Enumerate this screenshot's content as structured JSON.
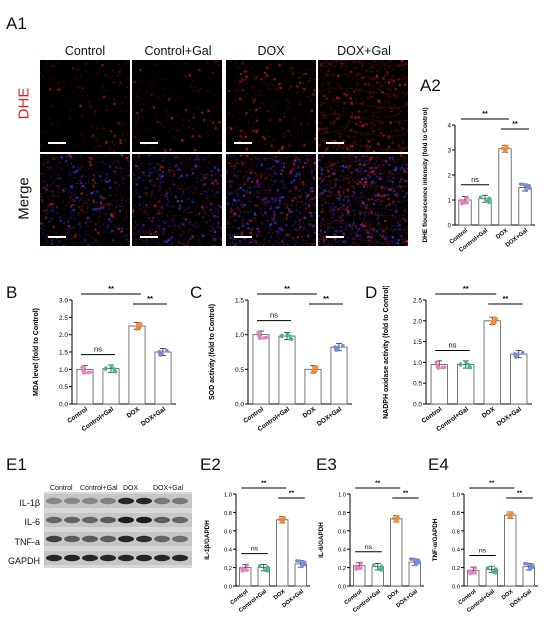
{
  "panel_labels": {
    "a1": "A1",
    "a2": "A2",
    "b": "B",
    "c": "C",
    "d": "D",
    "e1": "E1",
    "e2": "E2",
    "e3": "E3",
    "e4": "E4"
  },
  "micrograph": {
    "columns": [
      "Control",
      "Control+Gal",
      "DOX",
      "DOX+Gal"
    ],
    "rows": [
      "DHE",
      "Merge"
    ],
    "dhe_color": "#e02020"
  },
  "western": {
    "lanes": [
      "Control",
      "Control+Gal",
      "DOX",
      "DOX+Gal"
    ],
    "proteins": [
      "IL-1β",
      "IL-6",
      "TNF-a",
      "GAPDH"
    ]
  },
  "chart_data": [
    {
      "id": "A2",
      "type": "bar",
      "categories": [
        "Control",
        "Control+Gal",
        "DOX",
        "DOX+Gal"
      ],
      "values": [
        1.0,
        1.05,
        3.05,
        1.5
      ],
      "ylabel": "DHE flourescence intensity (fold to Control)",
      "ylim": [
        0,
        4
      ],
      "yticks": [
        0,
        1,
        2,
        3,
        4
      ],
      "colors": [
        "#e87fc2",
        "#3fbf7f",
        "#f08a3c",
        "#7a8ad6"
      ],
      "significance": [
        {
          "from": 0,
          "to": 1,
          "label": "ns"
        },
        {
          "from": 0,
          "to": 2,
          "label": "**"
        },
        {
          "from": 2,
          "to": 3,
          "label": "**"
        }
      ]
    },
    {
      "id": "B",
      "type": "bar",
      "categories": [
        "Control",
        "Control+Gal",
        "DOX",
        "DOX+Gal"
      ],
      "values": [
        1.0,
        1.02,
        2.25,
        1.5
      ],
      "ylabel": "MDA level (fold to Control)",
      "ylim": [
        0,
        3
      ],
      "yticks": [
        0.0,
        0.5,
        1.0,
        1.5,
        2.0,
        2.5,
        3.0
      ],
      "colors": [
        "#e87fc2",
        "#3fbf7f",
        "#f08a3c",
        "#7a8ad6"
      ],
      "significance": [
        {
          "from": 0,
          "to": 1,
          "label": "ns"
        },
        {
          "from": 0,
          "to": 2,
          "label": "**"
        },
        {
          "from": 2,
          "to": 3,
          "label": "**"
        }
      ]
    },
    {
      "id": "C",
      "type": "bar",
      "categories": [
        "Control",
        "Control+Gal",
        "DOX",
        "DOX+Gal"
      ],
      "values": [
        1.0,
        0.98,
        0.5,
        0.82
      ],
      "ylabel": "SOD activity (fold to Control)",
      "ylim": [
        0,
        1.5
      ],
      "yticks": [
        0.0,
        0.5,
        1.0,
        1.5
      ],
      "colors": [
        "#e87fc2",
        "#3fbf7f",
        "#f08a3c",
        "#7a8ad6"
      ],
      "significance": [
        {
          "from": 0,
          "to": 1,
          "label": "ns"
        },
        {
          "from": 0,
          "to": 2,
          "label": "**"
        },
        {
          "from": 2,
          "to": 3,
          "label": "**"
        }
      ]
    },
    {
      "id": "D",
      "type": "bar",
      "categories": [
        "Control",
        "Control+Gal",
        "DOX",
        "DOX+Gal"
      ],
      "values": [
        0.95,
        0.95,
        2.0,
        1.2
      ],
      "ylabel": "NADPH oxidase activity (fold to Control)",
      "ylim": [
        0,
        2.5
      ],
      "yticks": [
        0.0,
        0.5,
        1.0,
        1.5,
        2.0,
        2.5
      ],
      "colors": [
        "#e87fc2",
        "#3fbf7f",
        "#f08a3c",
        "#7a8ad6"
      ],
      "significance": [
        {
          "from": 0,
          "to": 1,
          "label": "ns"
        },
        {
          "from": 0,
          "to": 2,
          "label": "**"
        },
        {
          "from": 2,
          "to": 3,
          "label": "**"
        }
      ]
    },
    {
      "id": "E2",
      "type": "bar",
      "categories": [
        "Control",
        "Control+Gal",
        "DOX",
        "DOX+Gal"
      ],
      "values": [
        0.2,
        0.2,
        0.72,
        0.24
      ],
      "ylabel": "IL-1β/GAPDH",
      "ylim": [
        0,
        1.0
      ],
      "yticks": [
        0.0,
        0.2,
        0.4,
        0.6,
        0.8,
        1.0
      ],
      "colors": [
        "#e87fc2",
        "#3fbf7f",
        "#f08a3c",
        "#7a8ad6"
      ],
      "significance": [
        {
          "from": 0,
          "to": 1,
          "label": "ns"
        },
        {
          "from": 0,
          "to": 2,
          "label": "**"
        },
        {
          "from": 2,
          "to": 3,
          "label": "**"
        }
      ]
    },
    {
      "id": "E3",
      "type": "bar",
      "categories": [
        "Control",
        "Control+Gal",
        "DOX",
        "DOX+Gal"
      ],
      "values": [
        0.22,
        0.21,
        0.73,
        0.26
      ],
      "ylabel": "IL-6/GAPDH",
      "ylim": [
        0,
        1.0
      ],
      "yticks": [
        0.0,
        0.2,
        0.4,
        0.6,
        0.8,
        1.0
      ],
      "colors": [
        "#e87fc2",
        "#3fbf7f",
        "#f08a3c",
        "#7a8ad6"
      ],
      "significance": [
        {
          "from": 0,
          "to": 1,
          "label": "ns"
        },
        {
          "from": 0,
          "to": 2,
          "label": "**"
        },
        {
          "from": 2,
          "to": 3,
          "label": "**"
        }
      ]
    },
    {
      "id": "E4",
      "type": "bar",
      "categories": [
        "Control",
        "Control+Gal",
        "DOX",
        "DOX+Gal"
      ],
      "values": [
        0.17,
        0.18,
        0.77,
        0.21
      ],
      "ylabel": "TNF-α/GAPDH",
      "ylim": [
        0,
        1.0
      ],
      "yticks": [
        0.0,
        0.2,
        0.4,
        0.6,
        0.8,
        1.0
      ],
      "colors": [
        "#e87fc2",
        "#3fbf7f",
        "#f08a3c",
        "#7a8ad6"
      ],
      "significance": [
        {
          "from": 0,
          "to": 1,
          "label": "ns"
        },
        {
          "from": 0,
          "to": 2,
          "label": "**"
        },
        {
          "from": 2,
          "to": 3,
          "label": "**"
        }
      ]
    }
  ]
}
